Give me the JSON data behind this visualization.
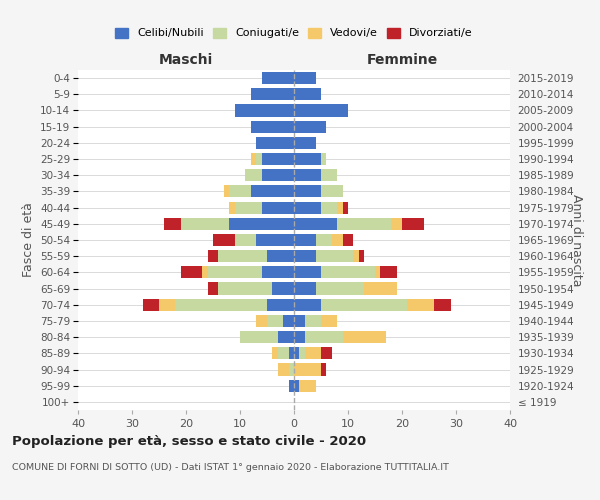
{
  "age_groups": [
    "100+",
    "95-99",
    "90-94",
    "85-89",
    "80-84",
    "75-79",
    "70-74",
    "65-69",
    "60-64",
    "55-59",
    "50-54",
    "45-49",
    "40-44",
    "35-39",
    "30-34",
    "25-29",
    "20-24",
    "15-19",
    "10-14",
    "5-9",
    "0-4"
  ],
  "birth_years": [
    "≤ 1919",
    "1920-1924",
    "1925-1929",
    "1930-1934",
    "1935-1939",
    "1940-1944",
    "1945-1949",
    "1950-1954",
    "1955-1959",
    "1960-1964",
    "1965-1969",
    "1970-1974",
    "1975-1979",
    "1980-1984",
    "1985-1989",
    "1990-1994",
    "1995-1999",
    "2000-2004",
    "2005-2009",
    "2010-2014",
    "2015-2019"
  ],
  "maschi": {
    "celibi": [
      0,
      1,
      0,
      1,
      3,
      2,
      5,
      4,
      6,
      5,
      7,
      12,
      6,
      8,
      6,
      6,
      7,
      8,
      11,
      8,
      6
    ],
    "coniugati": [
      0,
      0,
      1,
      2,
      7,
      3,
      17,
      10,
      10,
      9,
      4,
      9,
      5,
      4,
      3,
      1,
      0,
      0,
      0,
      0,
      0
    ],
    "vedovi": [
      0,
      0,
      2,
      1,
      0,
      2,
      3,
      0,
      1,
      0,
      0,
      0,
      1,
      1,
      0,
      1,
      0,
      0,
      0,
      0,
      0
    ],
    "divorziati": [
      0,
      0,
      0,
      0,
      0,
      0,
      3,
      2,
      4,
      2,
      4,
      3,
      0,
      0,
      0,
      0,
      0,
      0,
      0,
      0,
      0
    ]
  },
  "femmine": {
    "nubili": [
      0,
      1,
      0,
      1,
      2,
      2,
      5,
      4,
      5,
      4,
      4,
      8,
      5,
      5,
      5,
      5,
      4,
      6,
      10,
      5,
      4
    ],
    "coniugate": [
      0,
      0,
      0,
      1,
      7,
      3,
      16,
      9,
      10,
      7,
      3,
      10,
      3,
      4,
      3,
      1,
      0,
      0,
      0,
      0,
      0
    ],
    "vedove": [
      0,
      3,
      5,
      3,
      8,
      3,
      5,
      6,
      1,
      1,
      2,
      2,
      1,
      0,
      0,
      0,
      0,
      0,
      0,
      0,
      0
    ],
    "divorziate": [
      0,
      0,
      1,
      2,
      0,
      0,
      3,
      0,
      3,
      1,
      2,
      4,
      1,
      0,
      0,
      0,
      0,
      0,
      0,
      0,
      0
    ]
  },
  "colors": {
    "celibi": "#4472C4",
    "coniugati": "#c5d9a0",
    "vedovi": "#f5c96a",
    "divorziati": "#c0222a"
  },
  "xlim": 40,
  "title": "Popolazione per età, sesso e stato civile - 2020",
  "subtitle": "COMUNE DI FORNI DI SOTTO (UD) - Dati ISTAT 1° gennaio 2020 - Elaborazione TUTTITALIA.IT",
  "ylabel_left": "Fasce di età",
  "ylabel_right": "Anni di nascita",
  "bg_color": "#f5f5f5",
  "plot_bg": "#ffffff"
}
